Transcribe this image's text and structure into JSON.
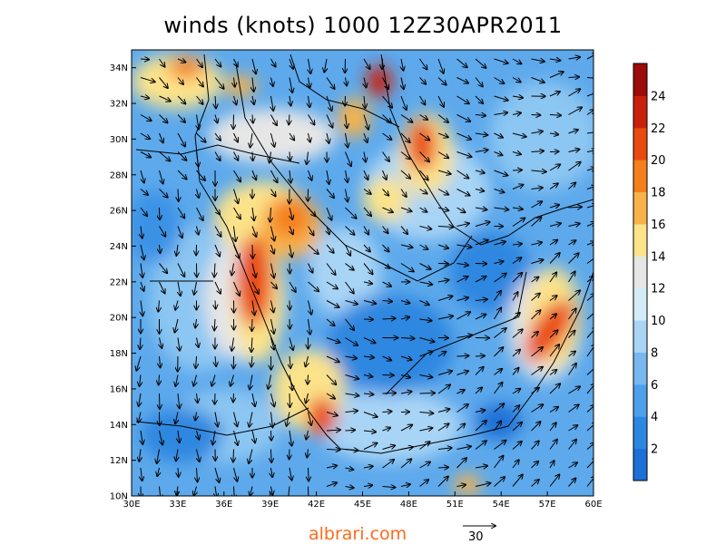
{
  "title": "winds (knots) 1000 12Z30APR2011",
  "watermark": "albrari.com",
  "reference_vector": {
    "label": "30"
  },
  "axes": {
    "lat_labels": [
      "10N",
      "12N",
      "14N",
      "16N",
      "18N",
      "20N",
      "22N",
      "24N",
      "26N",
      "28N",
      "30N",
      "32N",
      "34N"
    ],
    "lon_labels": [
      "30E",
      "33E",
      "36E",
      "39E",
      "42E",
      "45E",
      "48E",
      "51E",
      "54E",
      "57E",
      "60E"
    ],
    "lat_range": [
      10,
      35
    ],
    "lon_range": [
      30,
      60
    ]
  },
  "colorbar": {
    "labels": [
      "2",
      "4",
      "6",
      "8",
      "10",
      "12",
      "14",
      "16",
      "18",
      "20",
      "22",
      "24"
    ],
    "colors": [
      "#1e6fd6",
      "#2d87e0",
      "#4ea0ea",
      "#78b8f0",
      "#a8d4f5",
      "#d4ecf8",
      "#e6e6e6",
      "#fce38a",
      "#f8b24a",
      "#f57f1c",
      "#e94a10",
      "#c8200b",
      "#9c0c08"
    ]
  },
  "chart_data": {
    "type": "heatmap",
    "title": "winds (knots) 1000 12Z30APR2011",
    "variable": "wind speed (knots)",
    "level": "1000",
    "valid_time": "12Z30APR2011",
    "x_range": [
      30,
      60
    ],
    "y_range": [
      10,
      35
    ],
    "color_scale": [
      0,
      26
    ],
    "max_regions": [
      {
        "lon": 37.5,
        "lat": 21.5,
        "speed": 22
      },
      {
        "lon": 46.0,
        "lat": 33.5,
        "speed": 22
      },
      {
        "lon": 48.5,
        "lat": 29.5,
        "speed": 20
      },
      {
        "lon": 57.0,
        "lat": 18.5,
        "speed": 20
      },
      {
        "lon": 42.5,
        "lat": 14.0,
        "speed": 20
      },
      {
        "lon": 41.0,
        "lat": 25.5,
        "speed": 18
      }
    ]
  }
}
